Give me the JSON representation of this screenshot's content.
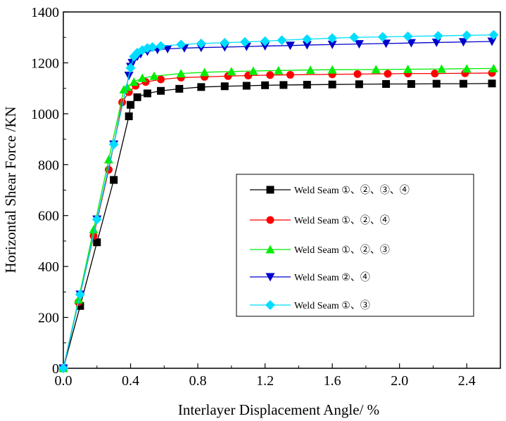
{
  "chart_data": {
    "type": "line",
    "title": "",
    "xlabel": "Interlayer Displacement Angle/ %",
    "ylabel": "Horizontal Shear Force /KN",
    "xlim": [
      0,
      2.6
    ],
    "ylim": [
      0,
      1400
    ],
    "xticks": [
      "0.0",
      "0.4",
      "0.8",
      "1.2",
      "1.6",
      "2.0",
      "2.4"
    ],
    "yticks": [
      "0",
      "200",
      "400",
      "600",
      "800",
      "1000",
      "1200",
      "1400"
    ],
    "grid": false,
    "legend_position": "center-right",
    "series": [
      {
        "name": "Weld Seam ①、②、③、④",
        "color": "#000000",
        "marker": "square",
        "x": [
          0,
          0.1,
          0.2,
          0.3,
          0.39,
          0.4,
          0.44,
          0.5,
          0.58,
          0.69,
          0.82,
          0.96,
          1.09,
          1.2,
          1.31,
          1.45,
          1.6,
          1.76,
          1.92,
          2.07,
          2.22,
          2.38,
          2.55
        ],
        "y": [
          0,
          245,
          495,
          740,
          990,
          1035,
          1065,
          1080,
          1090,
          1098,
          1105,
          1108,
          1110,
          1112,
          1113,
          1114,
          1115,
          1116,
          1117,
          1117,
          1118,
          1118,
          1119
        ]
      },
      {
        "name": "Weld Seam ①、②、④",
        "color": "#ff0000",
        "marker": "circle",
        "x": [
          0,
          0.09,
          0.18,
          0.27,
          0.35,
          0.39,
          0.43,
          0.49,
          0.58,
          0.7,
          0.84,
          0.98,
          1.1,
          1.23,
          1.35,
          1.6,
          1.75,
          1.93,
          2.05,
          2.21,
          2.39,
          2.55
        ],
        "y": [
          0,
          260,
          520,
          780,
          1045,
          1085,
          1110,
          1125,
          1135,
          1142,
          1145,
          1148,
          1150,
          1152,
          1153,
          1155,
          1156,
          1157,
          1158,
          1158,
          1159,
          1160
        ]
      },
      {
        "name": "Weld Seam ①、②、③",
        "color": "#00ee00",
        "marker": "triangle-up",
        "x": [
          0,
          0.09,
          0.18,
          0.27,
          0.36,
          0.38,
          0.42,
          0.47,
          0.54,
          0.7,
          0.84,
          1.0,
          1.13,
          1.28,
          1.47,
          1.6,
          1.86,
          2.05,
          2.25,
          2.4,
          2.56
        ],
        "y": [
          0,
          270,
          545,
          820,
          1095,
          1105,
          1125,
          1140,
          1148,
          1158,
          1163,
          1166,
          1168,
          1170,
          1172,
          1173,
          1174,
          1175,
          1176,
          1177,
          1178
        ]
      },
      {
        "name": "Weld Seam ②、④",
        "color": "#0000cc",
        "marker": "triangle-down",
        "x": [
          0,
          0.1,
          0.2,
          0.3,
          0.39,
          0.4,
          0.41,
          0.42,
          0.44,
          0.46,
          0.5,
          0.56,
          0.62,
          0.72,
          0.82,
          0.96,
          1.09,
          1.2,
          1.35,
          1.45,
          1.6,
          1.76,
          1.92,
          2.07,
          2.22,
          2.38,
          2.55
        ],
        "y": [
          0,
          290,
          585,
          880,
          1150,
          1185,
          1200,
          1212,
          1225,
          1235,
          1245,
          1252,
          1255,
          1258,
          1260,
          1262,
          1264,
          1266,
          1268,
          1270,
          1272,
          1274,
          1276,
          1278,
          1280,
          1282,
          1284
        ]
      },
      {
        "name": "Weld Seam ①、③",
        "color": "#00ddff",
        "marker": "diamond",
        "x": [
          0,
          0.1,
          0.2,
          0.3,
          0.4,
          0.42,
          0.44,
          0.47,
          0.5,
          0.53,
          0.58,
          0.7,
          0.82,
          0.96,
          1.08,
          1.2,
          1.3,
          1.45,
          1.6,
          1.73,
          1.9,
          2.05,
          2.23,
          2.4,
          2.56
        ],
        "y": [
          0,
          290,
          585,
          880,
          1180,
          1225,
          1240,
          1250,
          1258,
          1262,
          1266,
          1272,
          1276,
          1279,
          1282,
          1285,
          1289,
          1293,
          1297,
          1300,
          1302,
          1304,
          1306,
          1308,
          1310
        ]
      }
    ]
  }
}
